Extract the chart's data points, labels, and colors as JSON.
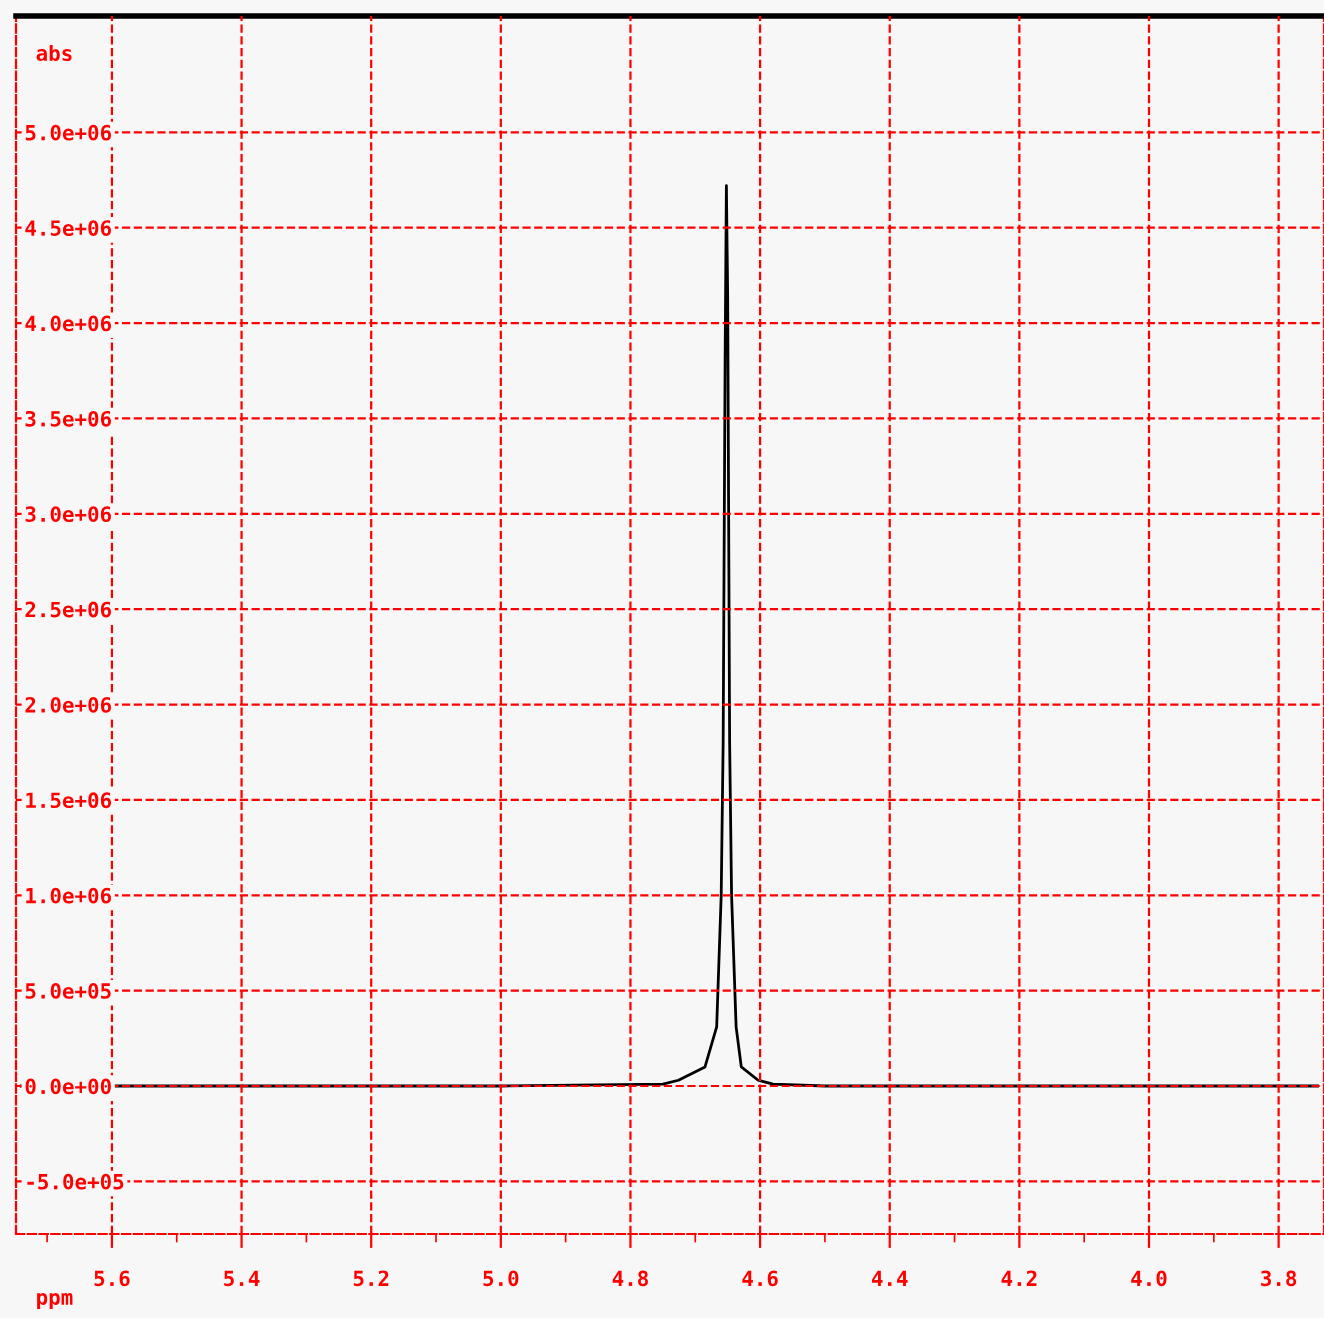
{
  "chart_data": {
    "type": "line",
    "xlabel": "ppm",
    "ylabel": "abs",
    "x": [
      5.74,
      5.0,
      4.75,
      4.726,
      4.685,
      4.667,
      4.66,
      4.657,
      4.654,
      4.652,
      4.65,
      4.647,
      4.644,
      4.637,
      4.629,
      4.603,
      4.58,
      4.5,
      3.74
    ],
    "series": [
      {
        "color": "#000000",
        "values": [
          0,
          0,
          10000,
          30000,
          100000,
          310000,
          1000000,
          1800000,
          3800000,
          4720000,
          4140000,
          1800000,
          1000000,
          310000,
          100000,
          30000,
          10000,
          0,
          0
        ]
      }
    ],
    "xlim": [
      5.748,
      3.73
    ],
    "ylim": [
      -776000,
      5610000
    ],
    "xticks": [
      5.6,
      5.4,
      5.2,
      {
        "value": 5.0,
        "label": "5.0"
      },
      4.8,
      4.6,
      4.4,
      4.2,
      {
        "value": 4.0,
        "label": "4.0"
      },
      3.8
    ],
    "yticks": [
      {
        "value": -500000,
        "label": "-5.0e+05"
      },
      {
        "value": 0,
        "label": "0.0e+00"
      },
      {
        "value": 500000,
        "label": "5.0e+05"
      },
      {
        "value": 1000000,
        "label": "1.0e+06"
      },
      {
        "value": 1500000,
        "label": "1.5e+06"
      },
      {
        "value": 2000000,
        "label": "2.0e+06"
      },
      {
        "value": 2500000,
        "label": "2.5e+06"
      },
      {
        "value": 3000000,
        "label": "3.0e+06"
      },
      {
        "value": 3500000,
        "label": "3.5e+06"
      },
      {
        "value": 4000000,
        "label": "4.0e+06"
      },
      {
        "value": 4500000,
        "label": "4.5e+06"
      },
      {
        "value": 5000000,
        "label": "5.0e+06"
      }
    ],
    "grid": true,
    "line_style": "solid"
  }
}
